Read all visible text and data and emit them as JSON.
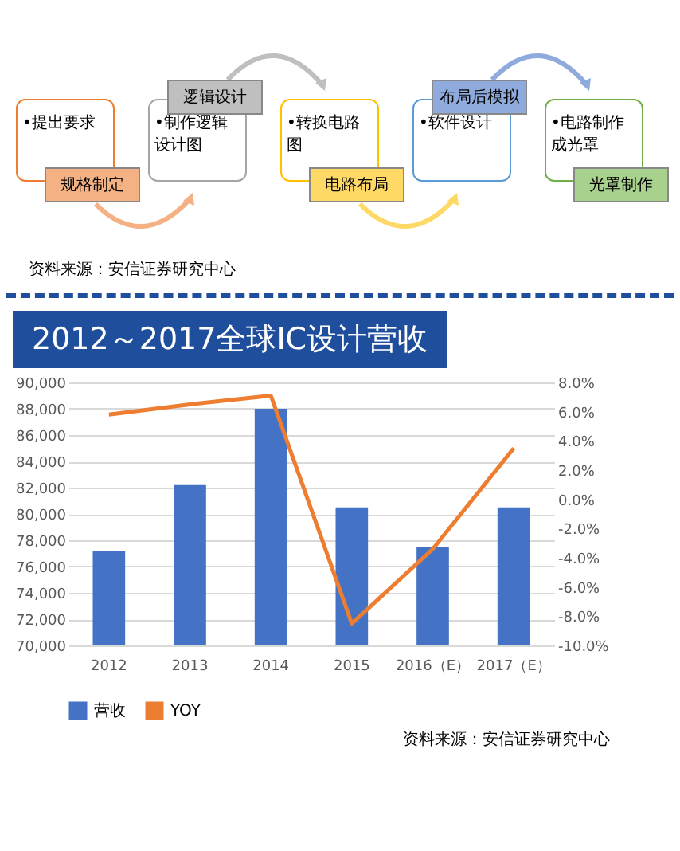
{
  "chart_data": [
    {
      "type": "other",
      "annotations": [
        "•提出要求",
        "规格制定",
        "•制作逻辑设计图",
        "逻辑设计",
        "•转换电路图",
        "电路布局",
        "•软件设计",
        "布局后模拟",
        "•电路制作成光罩",
        "光罩制作",
        "资料来源：安信证券研究中心"
      ]
    },
    {
      "type": "bar",
      "title": "2012～2017全球IC设计营收",
      "categories": [
        "2012",
        "2013",
        "2014",
        "2015",
        "2016（E）",
        "2017（E）"
      ],
      "series": [
        {
          "name": "营收",
          "type": "bar",
          "color": "#4472c4",
          "values": [
            77200,
            82200,
            88000,
            80500,
            77500,
            80500
          ]
        },
        {
          "name": "YOY",
          "type": "line",
          "axis": "y2",
          "color": "#ed7d31",
          "values": [
            5.8,
            6.5,
            7.1,
            -8.5,
            -3.4,
            3.5
          ]
        }
      ],
      "ylim": [
        70000,
        90000
      ],
      "yticks": [
        {
          "value": 70000,
          "label": "70,000"
        },
        {
          "value": 72000,
          "label": "72,000"
        },
        {
          "value": 74000,
          "label": "74,000"
        },
        {
          "value": 76000,
          "label": "76,000"
        },
        {
          "value": 78000,
          "label": "78,000"
        },
        {
          "value": 80000,
          "label": "80,000"
        },
        {
          "value": 82000,
          "label": "82,000"
        },
        {
          "value": 84000,
          "label": "84,000"
        },
        {
          "value": 86000,
          "label": "86,000"
        },
        {
          "value": 88000,
          "label": "88,000"
        },
        {
          "value": 90000,
          "label": "90,000"
        }
      ],
      "y2lim": [
        -10,
        8
      ],
      "y2ticks": [
        {
          "value": -10,
          "label": "-10.0%"
        },
        {
          "value": -8,
          "label": "-8.0%"
        },
        {
          "value": -6,
          "label": "-6.0%"
        },
        {
          "value": -4,
          "label": "-4.0%"
        },
        {
          "value": -2,
          "label": "-2.0%"
        },
        {
          "value": 0,
          "label": "0.0%"
        },
        {
          "value": 2,
          "label": "2.0%"
        },
        {
          "value": 4,
          "label": "4.0%"
        },
        {
          "value": 6,
          "label": "6.0%"
        },
        {
          "value": 8,
          "label": "8.0%"
        }
      ],
      "grid": "y",
      "legend": "bottom",
      "annotations": [
        "资料来源：安信证券研究中心"
      ]
    }
  ]
}
